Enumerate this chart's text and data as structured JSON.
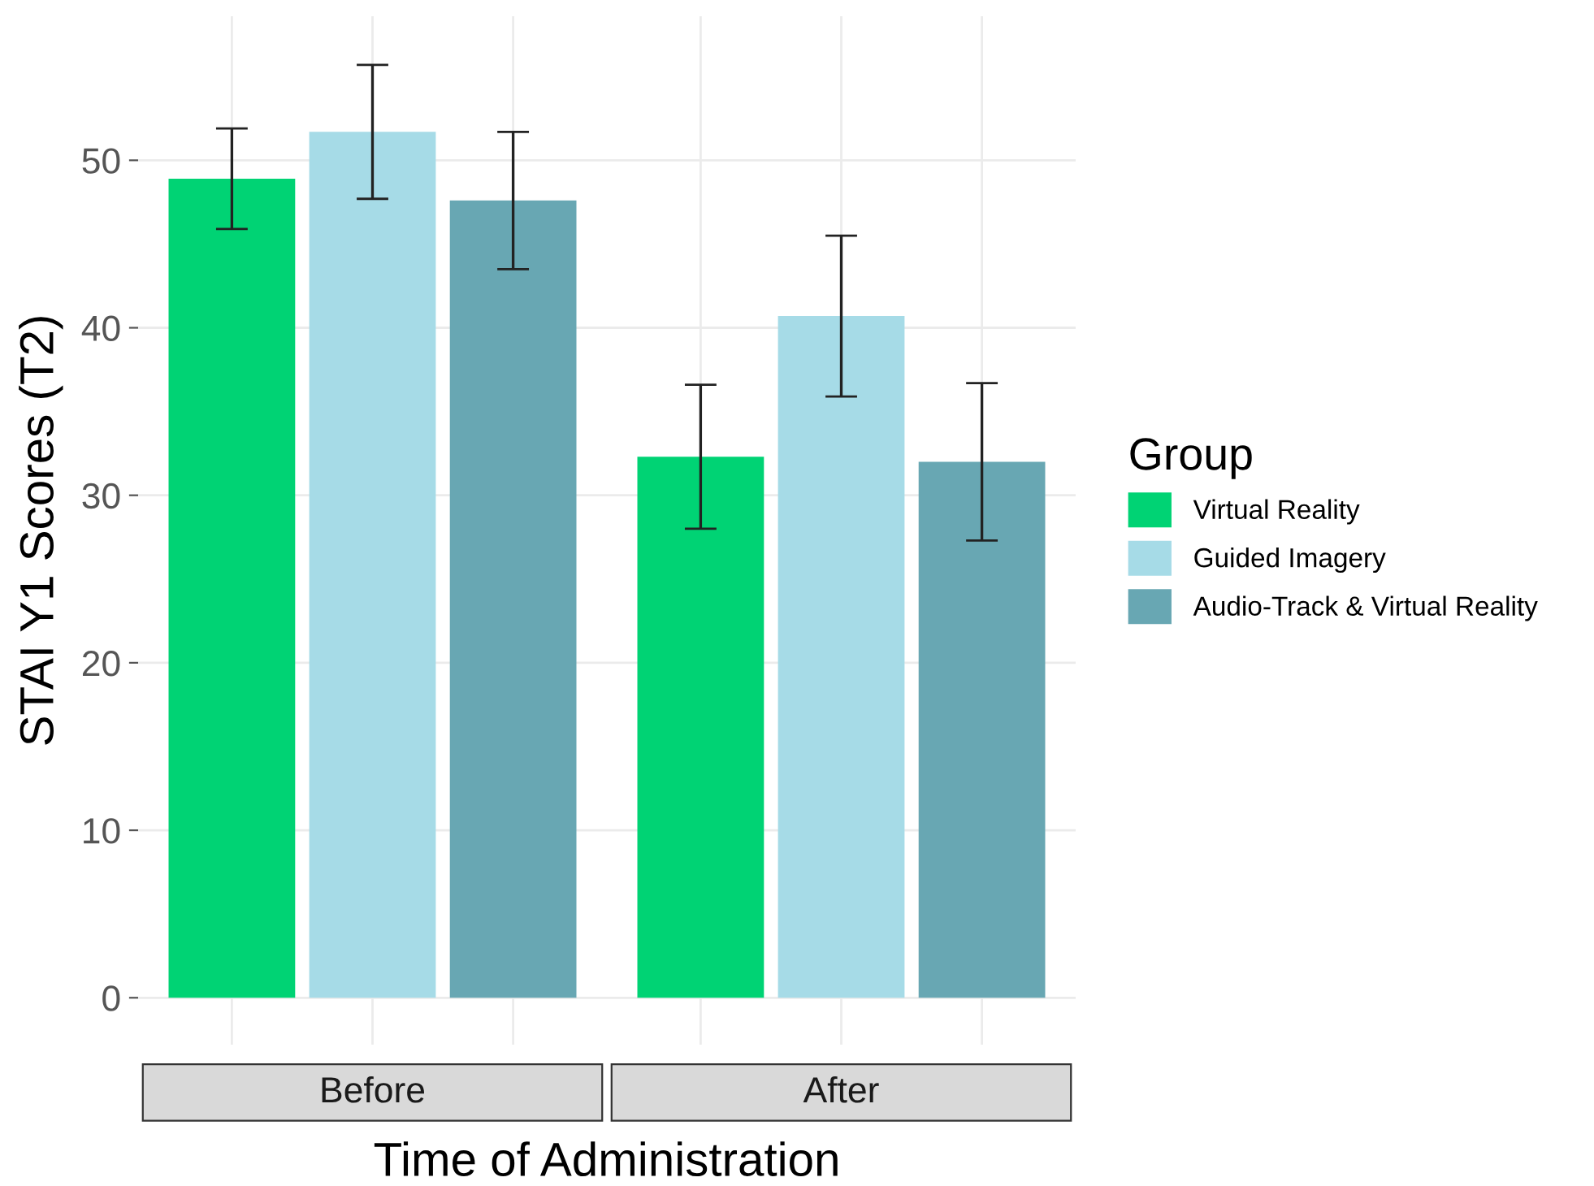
{
  "chart_data": {
    "type": "bar",
    "xlabel": "Time of Administration",
    "ylabel": "STAI Y1 Scores (T2)",
    "legend_title": "Group",
    "legend": "right",
    "categories": [
      "Before",
      "After"
    ],
    "ylim": [
      -2.8,
      58.6
    ],
    "yticks": [
      0,
      10,
      20,
      30,
      40,
      50
    ],
    "grid": true,
    "series": [
      {
        "name": "Virtual Reality",
        "color": "#00d374",
        "values": [
          48.9,
          32.3
        ],
        "errors": [
          3.0,
          4.3
        ]
      },
      {
        "name": "Guided Imagery",
        "color": "#a6dbe7",
        "values": [
          51.7,
          40.7
        ],
        "errors": [
          4.0,
          4.8
        ]
      },
      {
        "name": "Audio-Track & Virtual Reality",
        "color": "#68a7b3",
        "values": [
          47.6,
          32.0
        ],
        "errors": [
          4.1,
          4.7
        ]
      }
    ]
  }
}
